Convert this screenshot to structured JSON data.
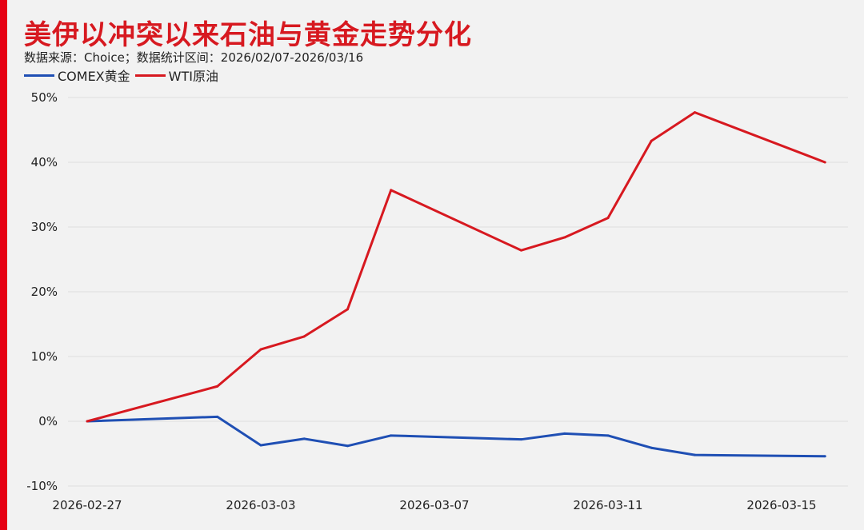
{
  "chart_data": {
    "type": "line",
    "title": "美伊以冲突以来石油与黄金走势分化",
    "subtitle": "数据来源：Choice；数据统计区间：2026/02/07-2026/03/16",
    "x": [
      "2026-02-27",
      "2026-03-02",
      "2026-03-03",
      "2026-03-04",
      "2026-03-05",
      "2026-03-06",
      "2026-03-09",
      "2026-03-10",
      "2026-03-11",
      "2026-03-12",
      "2026-03-13",
      "2026-03-16"
    ],
    "x_ticks": [
      "2026-02-27",
      "2026-03-03",
      "2026-03-07",
      "2026-03-11",
      "2026-03-15"
    ],
    "y_ticks": [
      "-10%",
      "0%",
      "10%",
      "20%",
      "30%",
      "40%",
      "50%"
    ],
    "ylim": [
      -10,
      50
    ],
    "grid": true,
    "legend": "top-left",
    "series": [
      {
        "name": "COMEX黄金",
        "color": "#1f4fb4",
        "values": [
          0,
          0.7,
          -3.7,
          -2.7,
          -3.8,
          -2.2,
          -2.8,
          -1.9,
          -2.2,
          -4.1,
          -5.2,
          -5.4
        ]
      },
      {
        "name": "WTI原油",
        "color": "#d71920",
        "values": [
          0,
          5.4,
          11.1,
          13.1,
          17.3,
          35.7,
          26.4,
          28.4,
          31.4,
          43.3,
          47.7,
          40.0
        ]
      }
    ]
  }
}
